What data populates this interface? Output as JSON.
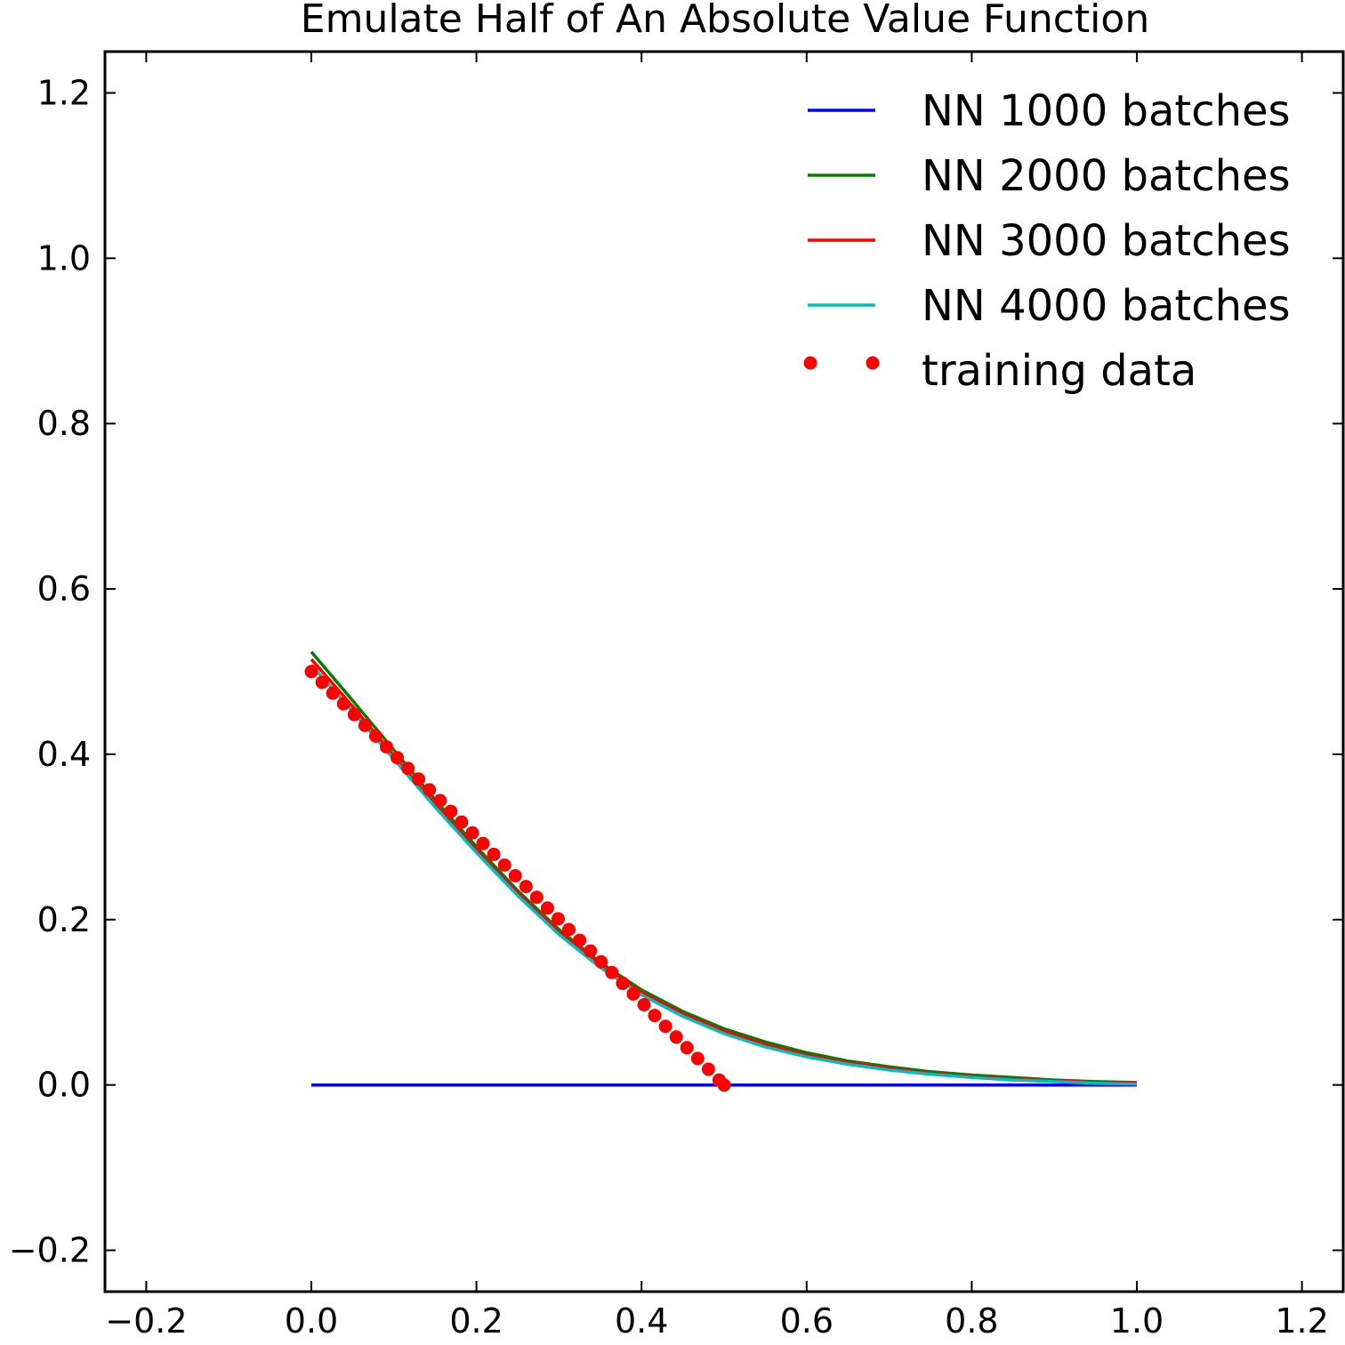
{
  "chart_data": {
    "type": "line",
    "title": "Emulate Half of An Absolute Value Function",
    "xlabel": "",
    "ylabel": "",
    "xlim": [
      -0.25,
      1.25
    ],
    "ylim": [
      -0.25,
      1.25
    ],
    "x_ticks": [
      -0.2,
      0.0,
      0.2,
      0.4,
      0.6,
      0.8,
      1.0,
      1.2
    ],
    "x_tick_labels": [
      "−0.2",
      "0.0",
      "0.2",
      "0.4",
      "0.6",
      "0.8",
      "1.0",
      "1.2"
    ],
    "y_ticks": [
      -0.2,
      0.0,
      0.2,
      0.4,
      0.6,
      0.8,
      1.0,
      1.2
    ],
    "y_tick_labels": [
      "−0.2",
      "0.0",
      "0.2",
      "0.4",
      "0.6",
      "0.8",
      "1.0",
      "1.2"
    ],
    "grid": false,
    "legend_position": "top-right",
    "x": [
      0.0,
      0.05,
      0.1,
      0.15,
      0.2,
      0.25,
      0.3,
      0.35,
      0.4,
      0.45,
      0.5,
      0.55,
      0.6,
      0.65,
      0.7,
      0.75,
      0.8,
      0.85,
      0.9,
      0.95,
      1.0
    ],
    "series": [
      {
        "name": "NN 1000 batches",
        "color": "#0000ff",
        "style": "line",
        "values": [
          0.0,
          0.0,
          0.0,
          0.0,
          0.0,
          0.0,
          0.0,
          0.0,
          0.0,
          0.0,
          0.0,
          0.0,
          0.0,
          0.0,
          0.0,
          0.0,
          0.0,
          0.0,
          0.0,
          0.0,
          0.0
        ]
      },
      {
        "name": "NN 2000 batches",
        "color": "#008000",
        "style": "line",
        "values": [
          0.524,
          0.465,
          0.405,
          0.345,
          0.288,
          0.235,
          0.188,
          0.148,
          0.115,
          0.089,
          0.068,
          0.052,
          0.039,
          0.029,
          0.022,
          0.016,
          0.012,
          0.009,
          0.006,
          0.004,
          0.003
        ]
      },
      {
        "name": "NN 3000 batches",
        "color": "#ff0000",
        "style": "line",
        "values": [
          0.515,
          0.458,
          0.398,
          0.339,
          0.284,
          0.232,
          0.185,
          0.145,
          0.112,
          0.086,
          0.065,
          0.049,
          0.036,
          0.027,
          0.02,
          0.014,
          0.01,
          0.007,
          0.005,
          0.003,
          0.002
        ]
      },
      {
        "name": "NN 4000 batches",
        "color": "#00bfbf",
        "style": "line",
        "values": [
          0.508,
          0.452,
          0.394,
          0.336,
          0.281,
          0.229,
          0.182,
          0.142,
          0.109,
          0.083,
          0.062,
          0.046,
          0.034,
          0.025,
          0.018,
          0.013,
          0.009,
          0.006,
          0.004,
          0.002,
          0.001
        ]
      }
    ],
    "scatter_series": {
      "name": "training data",
      "color": "#ff0000",
      "style": "dots",
      "x": [
        0.0,
        0.013,
        0.026,
        0.039,
        0.052,
        0.065,
        0.078,
        0.091,
        0.104,
        0.117,
        0.13,
        0.143,
        0.156,
        0.169,
        0.182,
        0.195,
        0.208,
        0.221,
        0.234,
        0.247,
        0.26,
        0.273,
        0.286,
        0.299,
        0.312,
        0.325,
        0.338,
        0.351,
        0.364,
        0.377,
        0.39,
        0.403,
        0.416,
        0.429,
        0.442,
        0.455,
        0.468,
        0.481,
        0.494,
        0.5
      ],
      "y": [
        0.5,
        0.487,
        0.474,
        0.461,
        0.448,
        0.435,
        0.422,
        0.409,
        0.396,
        0.383,
        0.37,
        0.357,
        0.344,
        0.331,
        0.318,
        0.305,
        0.292,
        0.279,
        0.266,
        0.253,
        0.24,
        0.227,
        0.214,
        0.201,
        0.188,
        0.175,
        0.162,
        0.149,
        0.136,
        0.123,
        0.11,
        0.097,
        0.084,
        0.071,
        0.058,
        0.045,
        0.032,
        0.019,
        0.006,
        0.0
      ]
    }
  }
}
